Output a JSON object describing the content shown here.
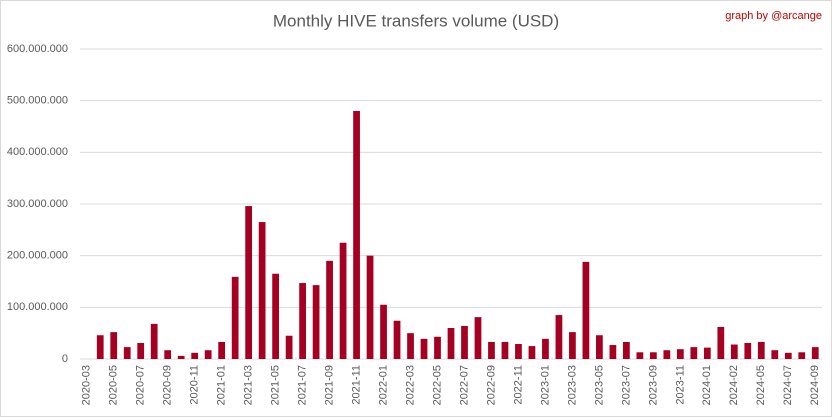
{
  "chart_data": {
    "type": "bar",
    "title": "Monthly HIVE transfers volume (USD)",
    "credit": "graph by @arcange",
    "categories": [
      "2020-03",
      null,
      "2020-05",
      null,
      "2020-07",
      null,
      "2020-09",
      null,
      "2020-11",
      null,
      "2021-01",
      null,
      "2021-03",
      null,
      "2021-05",
      null,
      "2021-07",
      null,
      "2021-09",
      null,
      "2021-11",
      null,
      "2022-01",
      null,
      "2022-03",
      null,
      "2022-05",
      null,
      "2022-07",
      null,
      "2022-09",
      null,
      "2022-11",
      null,
      "2023-01",
      null,
      "2023-03",
      null,
      "2023-05",
      null,
      "2023-07",
      null,
      "2023-09",
      null,
      "2023-11",
      null,
      "2024-01",
      null,
      "2024-02",
      null,
      "2024-05",
      null,
      "2024-07",
      null,
      "2024-09"
    ],
    "values": [
      0,
      46000000,
      52000000,
      23000000,
      31000000,
      68000000,
      17000000,
      6000000,
      12000000,
      17000000,
      33000000,
      159000000,
      296000000,
      265000000,
      165000000,
      45000000,
      147000000,
      143000000,
      190000000,
      225000000,
      480000000,
      200000000,
      105000000,
      74000000,
      50000000,
      39000000,
      43000000,
      60000000,
      64000000,
      81000000,
      33000000,
      33000000,
      29000000,
      25000000,
      39000000,
      85000000,
      52000000,
      188000000,
      46000000,
      27000000,
      33000000,
      13000000,
      13000000,
      17000000,
      19000000,
      23000000,
      22000000,
      62000000,
      28000000,
      31000000,
      33000000,
      17000000,
      12000000,
      13000000,
      23000000
    ],
    "color": "#a50021",
    "ylim": [
      0,
      600000000
    ],
    "yticks": [
      0,
      {
        "value": 100000000,
        "label": "100.000.000"
      },
      {
        "value": 200000000,
        "label": "200.000.000"
      },
      {
        "value": 300000000,
        "label": "300.000.000"
      },
      {
        "value": 400000000,
        "label": "400.000.000"
      },
      {
        "value": 500000000,
        "label": "500.000.000"
      },
      {
        "value": 600000000,
        "label": "600.000.000"
      }
    ],
    "grid": true
  }
}
